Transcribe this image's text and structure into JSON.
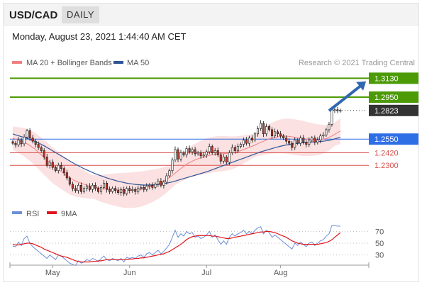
{
  "header": {
    "symbol": "USD/CAD",
    "period": "DAILY",
    "timestamp": "Monday, August 23, 2021 1:44:40 AM CET"
  },
  "colors": {
    "ma20": "#f08080",
    "bollinger_fill": "#fadcdc",
    "ma50": "#2f5597",
    "resistance": "#4c9a06",
    "pivot": "#2f6fe6",
    "support": "#d9534f",
    "current": "#333333",
    "arrow": "#2f67b0",
    "rsi": "#6b8fd8",
    "rsi_ma": "#e0151c",
    "candle_up": "#ffffff",
    "candle_down": "#c0392b",
    "candle_border": "#111111"
  },
  "chart_data": [
    {
      "type": "candlestick",
      "legend": [
        {
          "name": "MA 20 + Bollinger Bands",
          "color": "#f08080"
        },
        {
          "name": "MA 50",
          "color": "#2f5597"
        }
      ],
      "source": "Research © 2021 Trading Central",
      "ylim": [
        1.195,
        1.32
      ],
      "xlim": [
        0,
        120
      ],
      "levels": [
        {
          "label": "1.3130",
          "value": 1.313,
          "kind": "resistance"
        },
        {
          "label": "1.2950",
          "value": 1.295,
          "kind": "resistance"
        },
        {
          "label": "1.2823",
          "value": 1.2823,
          "kind": "current"
        },
        {
          "label": "1.2550",
          "value": 1.255,
          "kind": "pivot"
        },
        {
          "label": "1.2420",
          "value": 1.242,
          "kind": "support"
        },
        {
          "label": "1.2300",
          "value": 1.23,
          "kind": "support"
        }
      ],
      "projection": {
        "from": [
          111,
          1.282
        ],
        "to": [
          119,
          1.31
        ]
      },
      "candles_close": [
        1.251,
        1.2495,
        1.254,
        1.2505,
        1.257,
        1.263,
        1.256,
        1.253,
        1.25,
        1.247,
        1.244,
        1.238,
        1.23,
        1.233,
        1.228,
        1.225,
        1.23,
        1.227,
        1.223,
        1.218,
        1.212,
        1.208,
        1.206,
        1.211,
        1.205,
        1.208,
        1.21,
        1.207,
        1.211,
        1.208,
        1.205,
        1.209,
        1.213,
        1.207,
        1.205,
        1.208,
        1.206,
        1.204,
        1.207,
        1.203,
        1.208,
        1.206,
        1.207,
        1.205,
        1.208,
        1.209,
        1.207,
        1.21,
        1.211,
        1.209,
        1.212,
        1.215,
        1.211,
        1.214,
        1.22,
        1.225,
        1.235,
        1.245,
        1.236,
        1.242,
        1.24,
        1.246,
        1.243,
        1.245,
        1.241,
        1.242,
        1.239,
        1.24,
        1.243,
        1.248,
        1.242,
        1.244,
        1.24,
        1.234,
        1.238,
        1.233,
        1.242,
        1.247,
        1.244,
        1.248,
        1.25,
        1.254,
        1.251,
        1.256,
        1.254,
        1.26,
        1.265,
        1.27,
        1.26,
        1.267,
        1.264,
        1.258,
        1.262,
        1.26,
        1.258,
        1.256,
        1.253,
        1.251,
        1.247,
        1.254,
        1.251,
        1.256,
        1.252,
        1.25,
        1.254,
        1.256,
        1.252,
        1.254,
        1.258,
        1.259,
        1.264,
        1.269,
        1.283,
        1.283,
        1.282,
        1.2823
      ],
      "ma20": [
        1.256,
        1.255,
        1.254,
        1.253,
        1.252,
        1.2505,
        1.249,
        1.247,
        1.245,
        1.2425,
        1.24,
        1.2375,
        1.235,
        1.2325,
        1.23,
        1.228,
        1.226,
        1.224,
        1.222,
        1.22,
        1.218,
        1.2165,
        1.215,
        1.214,
        1.213,
        1.212,
        1.211,
        1.21,
        1.2095,
        1.209,
        1.2085,
        1.208,
        1.2078,
        1.2075,
        1.2072,
        1.207,
        1.2068,
        1.2066,
        1.2064,
        1.2062,
        1.2062,
        1.2062,
        1.2064,
        1.2066,
        1.207,
        1.2074,
        1.208,
        1.2088,
        1.2096,
        1.2104,
        1.2114,
        1.2124,
        1.2136,
        1.215,
        1.2166,
        1.2184,
        1.2204,
        1.2226,
        1.2248,
        1.227,
        1.229,
        1.231,
        1.2326,
        1.234,
        1.2352,
        1.2362,
        1.2372,
        1.238,
        1.2388,
        1.2395,
        1.24,
        1.2405,
        1.2408,
        1.241,
        1.2412,
        1.2414,
        1.2416,
        1.242,
        1.2425,
        1.2432,
        1.244,
        1.245,
        1.246,
        1.247,
        1.2482,
        1.2494,
        1.2506,
        1.2518,
        1.253,
        1.2542,
        1.2552,
        1.256,
        1.2566,
        1.2572,
        1.2576,
        1.2578,
        1.2578,
        1.2576,
        1.2572,
        1.2568,
        1.2564,
        1.256,
        1.2556,
        1.2552,
        1.2548,
        1.2546,
        1.2544,
        1.2544,
        1.2546,
        1.255,
        1.2556,
        1.2566,
        1.258,
        1.2596,
        1.2612,
        1.2628
      ],
      "ma50": [
        1.26,
        1.259,
        1.2582,
        1.2574,
        1.2566,
        1.2558,
        1.2548,
        1.2538,
        1.2526,
        1.2514,
        1.25,
        1.2486,
        1.247,
        1.2454,
        1.2438,
        1.2422,
        1.2406,
        1.239,
        1.2374,
        1.2358,
        1.2342,
        1.2326,
        1.231,
        1.2296,
        1.2282,
        1.2268,
        1.2256,
        1.2244,
        1.2232,
        1.222,
        1.221,
        1.22,
        1.219,
        1.218,
        1.2172,
        1.2164,
        1.2156,
        1.2148,
        1.2142,
        1.2136,
        1.213,
        1.2126,
        1.2122,
        1.2118,
        1.2116,
        1.2114,
        1.2112,
        1.2112,
        1.2112,
        1.2114,
        1.2116,
        1.2118,
        1.2122,
        1.2126,
        1.213,
        1.2136,
        1.2142,
        1.215,
        1.2158,
        1.2166,
        1.2174,
        1.2182,
        1.219,
        1.2198,
        1.2206,
        1.2214,
        1.2222,
        1.223,
        1.2238,
        1.2248,
        1.2258,
        1.2268,
        1.2278,
        1.2288,
        1.2298,
        1.2308,
        1.2318,
        1.2328,
        1.2338,
        1.2348,
        1.2358,
        1.2368,
        1.2378,
        1.2388,
        1.2398,
        1.2408,
        1.2418,
        1.2428,
        1.2436,
        1.2444,
        1.2452,
        1.246,
        1.2468,
        1.2476,
        1.2482,
        1.2488,
        1.2494,
        1.2498,
        1.2502,
        1.2506,
        1.251,
        1.2514,
        1.2516,
        1.2518,
        1.252,
        1.2522,
        1.2524,
        1.2526,
        1.2528,
        1.253,
        1.2534,
        1.2538,
        1.2544,
        1.2552,
        1.256,
        1.2568
      ]
    },
    {
      "type": "line",
      "legend": [
        {
          "name": "RSI",
          "color": "#6b8fd8"
        },
        {
          "name": "9MA",
          "color": "#e0151c"
        }
      ],
      "ylim": [
        15,
        85
      ],
      "yticks": [
        "70",
        "50",
        "30"
      ],
      "ytick_values": [
        70,
        50,
        30
      ],
      "rsi": [
        45,
        44,
        52,
        46,
        58,
        62,
        50,
        44,
        40,
        36,
        32,
        28,
        24,
        30,
        26,
        22,
        30,
        28,
        24,
        20,
        16,
        14,
        12,
        20,
        16,
        18,
        22,
        20,
        24,
        22,
        18,
        24,
        28,
        22,
        20,
        24,
        22,
        20,
        24,
        18,
        26,
        24,
        26,
        24,
        28,
        30,
        26,
        32,
        34,
        30,
        34,
        38,
        32,
        36,
        42,
        48,
        60,
        72,
        60,
        66,
        62,
        70,
        66,
        68,
        60,
        62,
        58,
        60,
        64,
        70,
        60,
        64,
        56,
        48,
        54,
        48,
        60,
        66,
        62,
        66,
        68,
        72,
        66,
        70,
        66,
        72,
        76,
        78,
        66,
        72,
        68,
        60,
        64,
        60,
        56,
        52,
        48,
        44,
        40,
        50,
        46,
        52,
        48,
        44,
        50,
        52,
        46,
        50,
        54,
        56,
        62,
        66,
        80,
        80,
        79,
        79
      ],
      "rsi_ma": [
        48,
        47,
        47,
        48,
        49,
        50,
        50,
        49,
        47,
        45,
        43,
        40,
        38,
        36,
        34,
        32,
        30,
        28,
        27,
        26,
        24,
        22,
        20,
        19,
        18,
        18,
        18,
        18,
        19,
        19,
        20,
        20,
        21,
        22,
        22,
        22,
        22,
        22,
        22,
        22,
        22,
        23,
        23,
        24,
        24,
        25,
        25,
        26,
        27,
        28,
        29,
        30,
        31,
        32,
        34,
        36,
        39,
        42,
        45,
        48,
        52,
        56,
        59,
        61,
        62,
        63,
        63,
        63,
        63,
        63,
        62,
        62,
        61,
        60,
        59,
        58,
        58,
        59,
        60,
        61,
        62,
        63,
        64,
        65,
        66,
        67,
        68,
        69,
        69,
        70,
        70,
        69,
        68,
        66,
        64,
        62,
        60,
        57,
        54,
        52,
        50,
        49,
        48,
        48,
        48,
        48,
        48,
        48,
        49,
        50,
        51,
        53,
        56,
        60,
        64,
        68
      ]
    }
  ],
  "xaxis": {
    "ticks": [
      {
        "label": "May",
        "index": 14
      },
      {
        "label": "Jun",
        "index": 41
      },
      {
        "label": "Jul",
        "index": 68
      },
      {
        "label": "Aug",
        "index": 94
      }
    ]
  }
}
